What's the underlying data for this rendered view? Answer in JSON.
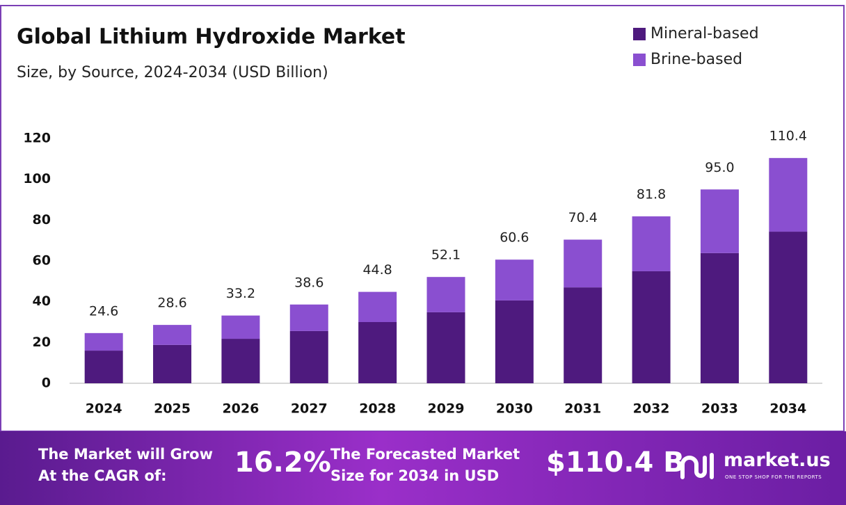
{
  "chart_data": {
    "type": "stacked-bar",
    "title": "Global Lithium Hydroxide Market",
    "subtitle": "Size, by Source, 2024-2034 (USD Billion)",
    "categories": [
      "2024",
      "2025",
      "2026",
      "2027",
      "2028",
      "2029",
      "2030",
      "2031",
      "2032",
      "2033",
      "2034"
    ],
    "series": [
      {
        "name": "Mineral-based",
        "color": "#4e1a7e",
        "values": [
          16.0,
          18.8,
          21.8,
          25.6,
          30.0,
          34.8,
          40.6,
          47.0,
          54.9,
          63.8,
          74.3
        ]
      },
      {
        "name": "Brine-based",
        "color": "#8a4fd0",
        "values": [
          8.6,
          9.8,
          11.4,
          13.0,
          14.8,
          17.3,
          20.0,
          23.4,
          26.9,
          31.2,
          36.1
        ]
      }
    ],
    "totals": [
      24.6,
      28.6,
      33.2,
      38.6,
      44.8,
      52.1,
      60.6,
      70.4,
      81.8,
      95.0,
      110.4
    ],
    "total_labels": [
      "24.6",
      "28.6",
      "33.2",
      "38.6",
      "44.8",
      "52.1",
      "60.6",
      "70.4",
      "81.8",
      "95.0",
      "110.4"
    ],
    "ylim": [
      0,
      120
    ],
    "yticks": [
      0,
      20,
      40,
      60,
      80,
      100,
      120
    ],
    "grid": false,
    "legend": "top-right"
  },
  "footer": {
    "cagr_label": [
      "The Market will Grow",
      "At the CAGR of:"
    ],
    "cagr_value": "16.2%",
    "forecast_label": [
      "The Forecasted Market",
      "Size for 2034 in USD"
    ],
    "forecast_value": "$110.4 B",
    "brand": "market.us",
    "tagline": "ONE STOP SHOP FOR THE REPORTS"
  }
}
